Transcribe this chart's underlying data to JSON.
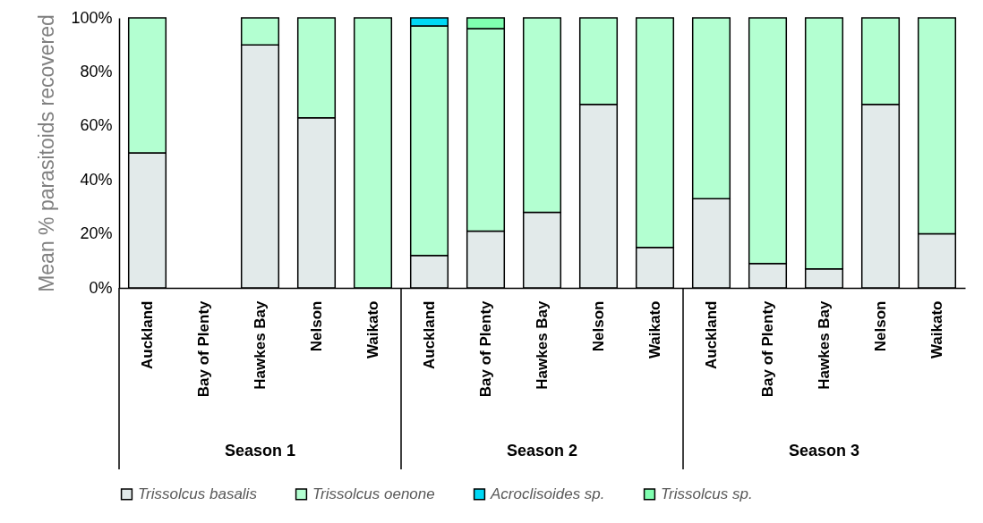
{
  "chart_data": {
    "type": "bar",
    "stacked": true,
    "ylabel": "Mean % parasitoids recovered",
    "categories": [
      "Auckland",
      "Bay of Plenty",
      "Hawkes Bay",
      "Nelson",
      "Waikato",
      "Auckland",
      "Bay of Plenty",
      "Hawkes Bay",
      "Nelson",
      "Waikato",
      "Auckland",
      "Bay of Plenty",
      "Hawkes Bay",
      "Nelson",
      "Waikato"
    ],
    "series": [
      {
        "name": "Trissolcus basalis",
        "color": "#e2eaea",
        "values": [
          50,
          null,
          90,
          63,
          null,
          12,
          21,
          28,
          68,
          15,
          33,
          9,
          7,
          68,
          20
        ]
      },
      {
        "name": "Trissolcus oenone",
        "color": "#b3ffd1",
        "values": [
          50,
          null,
          10,
          37,
          100,
          85,
          75,
          72,
          32,
          85,
          67,
          91,
          93,
          32,
          80
        ]
      },
      {
        "name": "Acroclisoides sp.",
        "color": "#00d8f5",
        "values": [
          null,
          null,
          null,
          null,
          null,
          3,
          null,
          null,
          null,
          null,
          null,
          null,
          null,
          null,
          null
        ]
      },
      {
        "name": "Trissolcus sp.",
        "color": "#80ffb0",
        "values": [
          null,
          null,
          null,
          null,
          null,
          null,
          4,
          null,
          null,
          null,
          null,
          null,
          null,
          null,
          null
        ]
      }
    ],
    "ylim": [
      0,
      100
    ],
    "yticks": [
      {
        "value": 0,
        "label": "0%"
      },
      {
        "value": 20,
        "label": "20%"
      },
      {
        "value": 40,
        "label": "40%"
      },
      {
        "value": 60,
        "label": "60%"
      },
      {
        "value": 80,
        "label": "80%"
      },
      {
        "value": 100,
        "label": "100%"
      }
    ],
    "grid": false,
    "legend": "bottom",
    "annotations": [
      "Season 1",
      "Season 2",
      "Season 3"
    ]
  }
}
